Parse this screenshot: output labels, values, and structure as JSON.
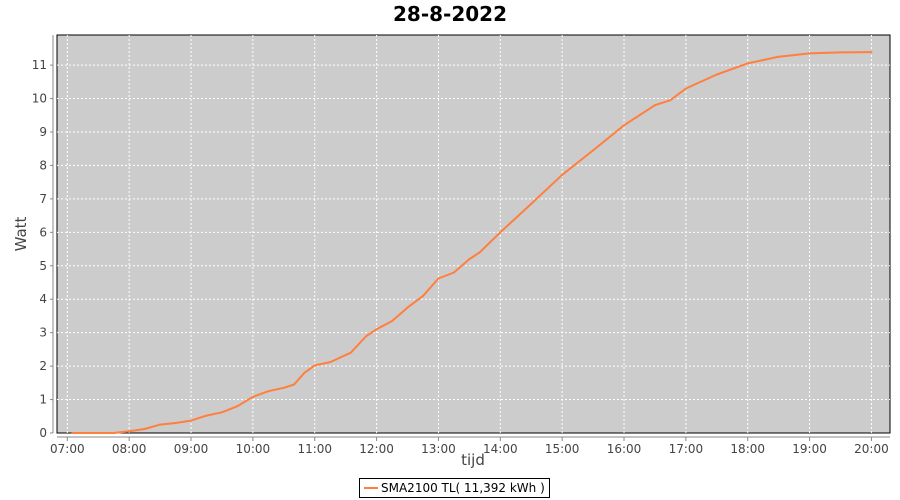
{
  "chart_data": {
    "type": "line",
    "title": "28-8-2022",
    "xlabel": "tijd",
    "ylabel": "Watt",
    "x_ticks": [
      "07:00",
      "08:00",
      "09:00",
      "10:00",
      "11:00",
      "12:00",
      "13:00",
      "14:00",
      "15:00",
      "16:00",
      "17:00",
      "18:00",
      "19:00",
      "20:00"
    ],
    "y_ticks": [
      0,
      1,
      2,
      3,
      4,
      5,
      6,
      7,
      8,
      9,
      10,
      11
    ],
    "xlim": [
      "06:50",
      "20:18"
    ],
    "ylim": [
      0,
      11.9
    ],
    "grid": true,
    "background": "#cccccc",
    "legend_position": "bottom",
    "series": [
      {
        "name": "SMA2100 TL( 11,392 kWh )",
        "color": "#ff7f3f",
        "x": [
          "07:05",
          "07:30",
          "07:45",
          "08:00",
          "08:15",
          "08:30",
          "08:45",
          "09:00",
          "09:15",
          "09:30",
          "09:45",
          "10:00",
          "10:15",
          "10:30",
          "10:40",
          "10:50",
          "11:00",
          "11:15",
          "11:35",
          "11:50",
          "12:00",
          "12:15",
          "12:30",
          "12:45",
          "13:00",
          "13:15",
          "13:30",
          "13:40",
          "14:00",
          "14:30",
          "15:00",
          "15:30",
          "16:00",
          "16:30",
          "16:45",
          "17:00",
          "17:30",
          "18:00",
          "18:30",
          "19:00",
          "19:30",
          "20:00"
        ],
        "y": [
          0,
          0,
          0,
          0.05,
          0.12,
          0.25,
          0.3,
          0.37,
          0.52,
          0.62,
          0.8,
          1.08,
          1.25,
          1.35,
          1.45,
          1.8,
          2.02,
          2.12,
          2.4,
          2.9,
          3.1,
          3.35,
          3.75,
          4.1,
          4.62,
          4.8,
          5.2,
          5.4,
          6.0,
          6.85,
          7.72,
          8.45,
          9.2,
          9.8,
          9.95,
          10.3,
          10.72,
          11.05,
          11.25,
          11.35,
          11.38,
          11.39
        ]
      }
    ]
  }
}
